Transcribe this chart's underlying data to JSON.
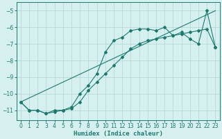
{
  "xlabel": "Humidex (Indice chaleur)",
  "background_color": "#d6f0f0",
  "grid_color": "#b8d8d8",
  "line_color": "#1a7a6e",
  "xlim": [
    -0.5,
    23.5
  ],
  "ylim": [
    -11.6,
    -4.5
  ],
  "xticks": [
    0,
    1,
    2,
    3,
    4,
    5,
    6,
    7,
    8,
    9,
    10,
    11,
    12,
    13,
    14,
    15,
    16,
    17,
    18,
    19,
    20,
    21,
    22,
    23
  ],
  "yticks": [
    -11,
    -10,
    -9,
    -8,
    -7,
    -6,
    -5
  ],
  "line1_x": [
    0,
    1,
    2,
    3,
    4,
    5,
    6,
    7,
    8,
    9,
    10,
    11,
    12,
    13,
    14,
    15,
    16,
    17,
    18,
    19,
    20,
    21,
    22,
    23
  ],
  "line1_y": [
    -10.5,
    -11.0,
    -11.0,
    -11.2,
    -11.0,
    -11.0,
    -10.8,
    -10.0,
    -9.5,
    -8.8,
    -7.5,
    -6.8,
    -6.6,
    -6.2,
    -6.1,
    -6.1,
    -6.2,
    -6.0,
    -6.5,
    -6.3,
    -6.7,
    -7.0,
    -5.0,
    -7.2
  ],
  "line2_x": [
    0,
    1,
    2,
    3,
    4,
    5,
    6,
    7,
    8,
    9,
    10,
    11,
    12,
    13,
    14,
    15,
    16,
    17,
    18,
    19,
    20,
    21,
    22,
    23
  ],
  "line2_y": [
    -10.5,
    -11.0,
    -11.0,
    -11.2,
    -11.1,
    -11.0,
    -10.9,
    -10.5,
    -9.8,
    -9.3,
    -8.8,
    -8.3,
    -7.8,
    -7.3,
    -7.0,
    -6.8,
    -6.7,
    -6.6,
    -6.5,
    -6.4,
    -6.3,
    -6.2,
    -6.1,
    -7.2
  ],
  "line3_x": [
    0,
    23
  ],
  "line3_y": [
    -10.5,
    -5.0
  ]
}
